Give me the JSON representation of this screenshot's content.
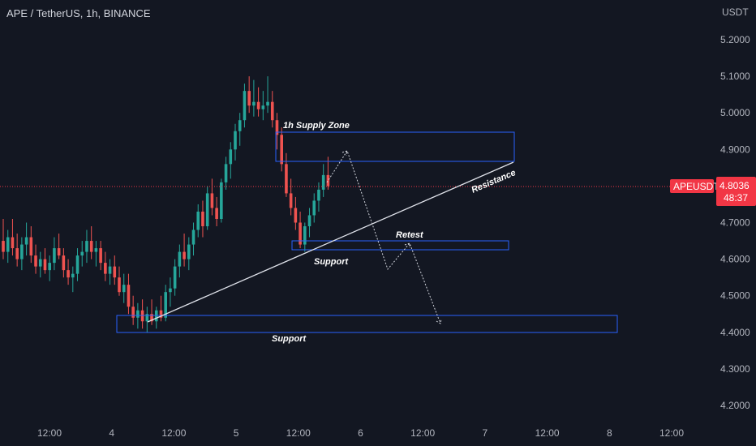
{
  "header": {
    "title": "APE / TetherUS, 1h, BINANCE"
  },
  "price_axis": {
    "unit": "USDT"
  },
  "current_price": {
    "symbol": "APEUSDT",
    "price": "4.8036",
    "countdown": "48:37",
    "color": "#f23645"
  },
  "colors": {
    "up": "#26a69a",
    "down": "#ef5350",
    "zone": "#2962ff",
    "background": "#131722"
  },
  "annotations": {
    "supply_zone": "1h Supply Zone",
    "resistance": "Resistance",
    "retest": "Retest",
    "support_upper": "Support",
    "support_lower": "Support"
  },
  "chart_data": {
    "type": "candlestick",
    "title": "APE / TetherUS, 1h, BINANCE",
    "ylabel": "USDT",
    "ylim": [
      4.15,
      5.28
    ],
    "y_ticks": [
      "5.2000",
      "5.1000",
      "5.0000",
      "4.9000",
      "4.8000",
      "4.7000",
      "4.6000",
      "4.5000",
      "4.4000",
      "4.3000",
      "4.2000"
    ],
    "x_ticks": [
      "12:00",
      "4",
      "12:00",
      "5",
      "12:00",
      "6",
      "12:00",
      "7",
      "12:00",
      "8",
      "12:00"
    ],
    "candles_ohlc": [
      [
        4.65,
        4.71,
        4.6,
        4.62
      ],
      [
        4.62,
        4.68,
        4.59,
        4.66
      ],
      [
        4.66,
        4.71,
        4.61,
        4.63
      ],
      [
        4.63,
        4.67,
        4.58,
        4.6
      ],
      [
        4.6,
        4.66,
        4.57,
        4.64
      ],
      [
        4.64,
        4.7,
        4.61,
        4.66
      ],
      [
        4.66,
        4.69,
        4.59,
        4.61
      ],
      [
        4.61,
        4.64,
        4.56,
        4.58
      ],
      [
        4.58,
        4.62,
        4.55,
        4.6
      ],
      [
        4.6,
        4.63,
        4.56,
        4.57
      ],
      [
        4.57,
        4.61,
        4.54,
        4.59
      ],
      [
        4.59,
        4.66,
        4.57,
        4.63
      ],
      [
        4.63,
        4.67,
        4.6,
        4.61
      ],
      [
        4.61,
        4.63,
        4.55,
        4.57
      ],
      [
        4.57,
        4.6,
        4.53,
        4.55
      ],
      [
        4.55,
        4.58,
        4.51,
        4.56
      ],
      [
        4.56,
        4.63,
        4.54,
        4.61
      ],
      [
        4.61,
        4.65,
        4.58,
        4.62
      ],
      [
        4.62,
        4.68,
        4.59,
        4.65
      ],
      [
        4.65,
        4.69,
        4.6,
        4.62
      ],
      [
        4.62,
        4.65,
        4.58,
        4.63
      ],
      [
        4.63,
        4.65,
        4.57,
        4.59
      ],
      [
        4.59,
        4.62,
        4.54,
        4.56
      ],
      [
        4.56,
        4.6,
        4.53,
        4.58
      ],
      [
        4.58,
        4.61,
        4.53,
        4.55
      ],
      [
        4.55,
        4.58,
        4.5,
        4.51
      ],
      [
        4.51,
        4.56,
        4.48,
        4.53
      ],
      [
        4.53,
        4.56,
        4.45,
        4.47
      ],
      [
        4.47,
        4.5,
        4.42,
        4.44
      ],
      [
        4.44,
        4.48,
        4.41,
        4.46
      ],
      [
        4.46,
        4.49,
        4.41,
        4.43
      ],
      [
        4.43,
        4.47,
        4.4,
        4.45
      ],
      [
        4.45,
        4.49,
        4.42,
        4.43
      ],
      [
        4.43,
        4.47,
        4.41,
        4.46
      ],
      [
        4.46,
        4.5,
        4.43,
        4.44
      ],
      [
        4.44,
        4.53,
        4.43,
        4.51
      ],
      [
        4.51,
        4.55,
        4.47,
        4.52
      ],
      [
        4.52,
        4.6,
        4.5,
        4.58
      ],
      [
        4.58,
        4.64,
        4.55,
        4.62
      ],
      [
        4.62,
        4.67,
        4.58,
        4.6
      ],
      [
        4.6,
        4.66,
        4.57,
        4.64
      ],
      [
        4.64,
        4.7,
        4.61,
        4.68
      ],
      [
        4.68,
        4.75,
        4.66,
        4.73
      ],
      [
        4.73,
        4.76,
        4.66,
        4.69
      ],
      [
        4.69,
        4.8,
        4.68,
        4.78
      ],
      [
        4.78,
        4.82,
        4.72,
        4.74
      ],
      [
        4.74,
        4.77,
        4.69,
        4.71
      ],
      [
        4.71,
        4.82,
        4.7,
        4.81
      ],
      [
        4.81,
        4.88,
        4.79,
        4.86
      ],
      [
        4.86,
        4.92,
        4.82,
        4.9
      ],
      [
        4.9,
        4.97,
        4.87,
        4.95
      ],
      [
        4.95,
        5.0,
        4.91,
        4.98
      ],
      [
        4.98,
        5.08,
        4.96,
        5.06
      ],
      [
        5.06,
        5.1,
        5.0,
        5.02
      ],
      [
        5.02,
        5.09,
        4.99,
        5.03
      ],
      [
        5.03,
        5.07,
        4.99,
        5.01
      ],
      [
        5.01,
        5.06,
        4.98,
        5.02
      ],
      [
        5.02,
        5.1,
        5.0,
        5.03
      ],
      [
        5.03,
        5.06,
        4.96,
        4.98
      ],
      [
        4.98,
        5.0,
        4.9,
        4.94
      ],
      [
        4.94,
        4.96,
        4.84,
        4.86
      ],
      [
        4.86,
        4.89,
        4.77,
        4.78
      ],
      [
        4.78,
        4.82,
        4.72,
        4.74
      ],
      [
        4.74,
        4.77,
        4.68,
        4.7
      ],
      [
        4.7,
        4.73,
        4.63,
        4.64
      ],
      [
        4.64,
        4.7,
        4.62,
        4.69
      ],
      [
        4.69,
        4.74,
        4.66,
        4.72
      ],
      [
        4.72,
        4.78,
        4.7,
        4.76
      ],
      [
        4.76,
        4.81,
        4.73,
        4.79
      ],
      [
        4.79,
        4.86,
        4.77,
        4.83
      ],
      [
        4.83,
        4.88,
        4.79,
        4.8
      ]
    ]
  }
}
